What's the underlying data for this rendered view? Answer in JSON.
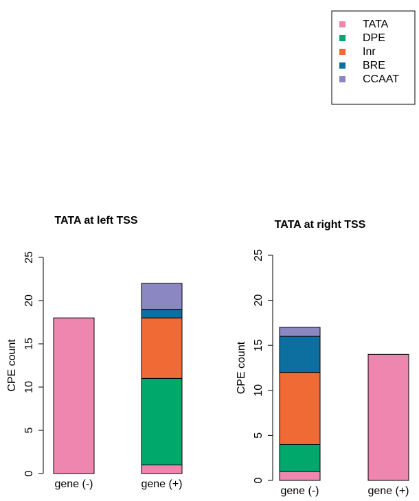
{
  "chart_data": [
    {
      "type": "stacked-bar",
      "title": "TATA at left TSS",
      "y_label": "CPE count",
      "categories": [
        "gene (-)",
        "gene (+)"
      ],
      "series": [
        {
          "name": "TATA",
          "color": "#ef86b0",
          "values": [
            18,
            1
          ]
        },
        {
          "name": "DPE",
          "color": "#00a86b",
          "values": [
            0,
            10
          ]
        },
        {
          "name": "Inr",
          "color": "#f06a35",
          "values": [
            0,
            7
          ]
        },
        {
          "name": "BRE",
          "color": "#0d6fa0",
          "values": [
            0,
            1
          ]
        },
        {
          "name": "CCAAT",
          "color": "#8b87c2",
          "values": [
            0,
            3
          ]
        }
      ],
      "ylim": [
        0,
        25
      ],
      "yticks": [
        0,
        5,
        10,
        15,
        20,
        25
      ]
    },
    {
      "type": "stacked-bar",
      "title": "TATA at right TSS",
      "y_label": "CPE count",
      "categories": [
        "gene (-)",
        "gene (+)"
      ],
      "series": [
        {
          "name": "TATA",
          "color": "#ef86b0",
          "values": [
            1,
            14
          ]
        },
        {
          "name": "DPE",
          "color": "#00a86b",
          "values": [
            3,
            0
          ]
        },
        {
          "name": "Inr",
          "color": "#f06a35",
          "values": [
            8,
            0
          ]
        },
        {
          "name": "BRE",
          "color": "#0d6fa0",
          "values": [
            4,
            0
          ]
        },
        {
          "name": "CCAAT",
          "color": "#8b87c2",
          "values": [
            1,
            0
          ]
        }
      ],
      "ylim": [
        0,
        25
      ],
      "yticks": [
        0,
        5,
        10,
        15,
        20,
        25
      ]
    }
  ]
}
